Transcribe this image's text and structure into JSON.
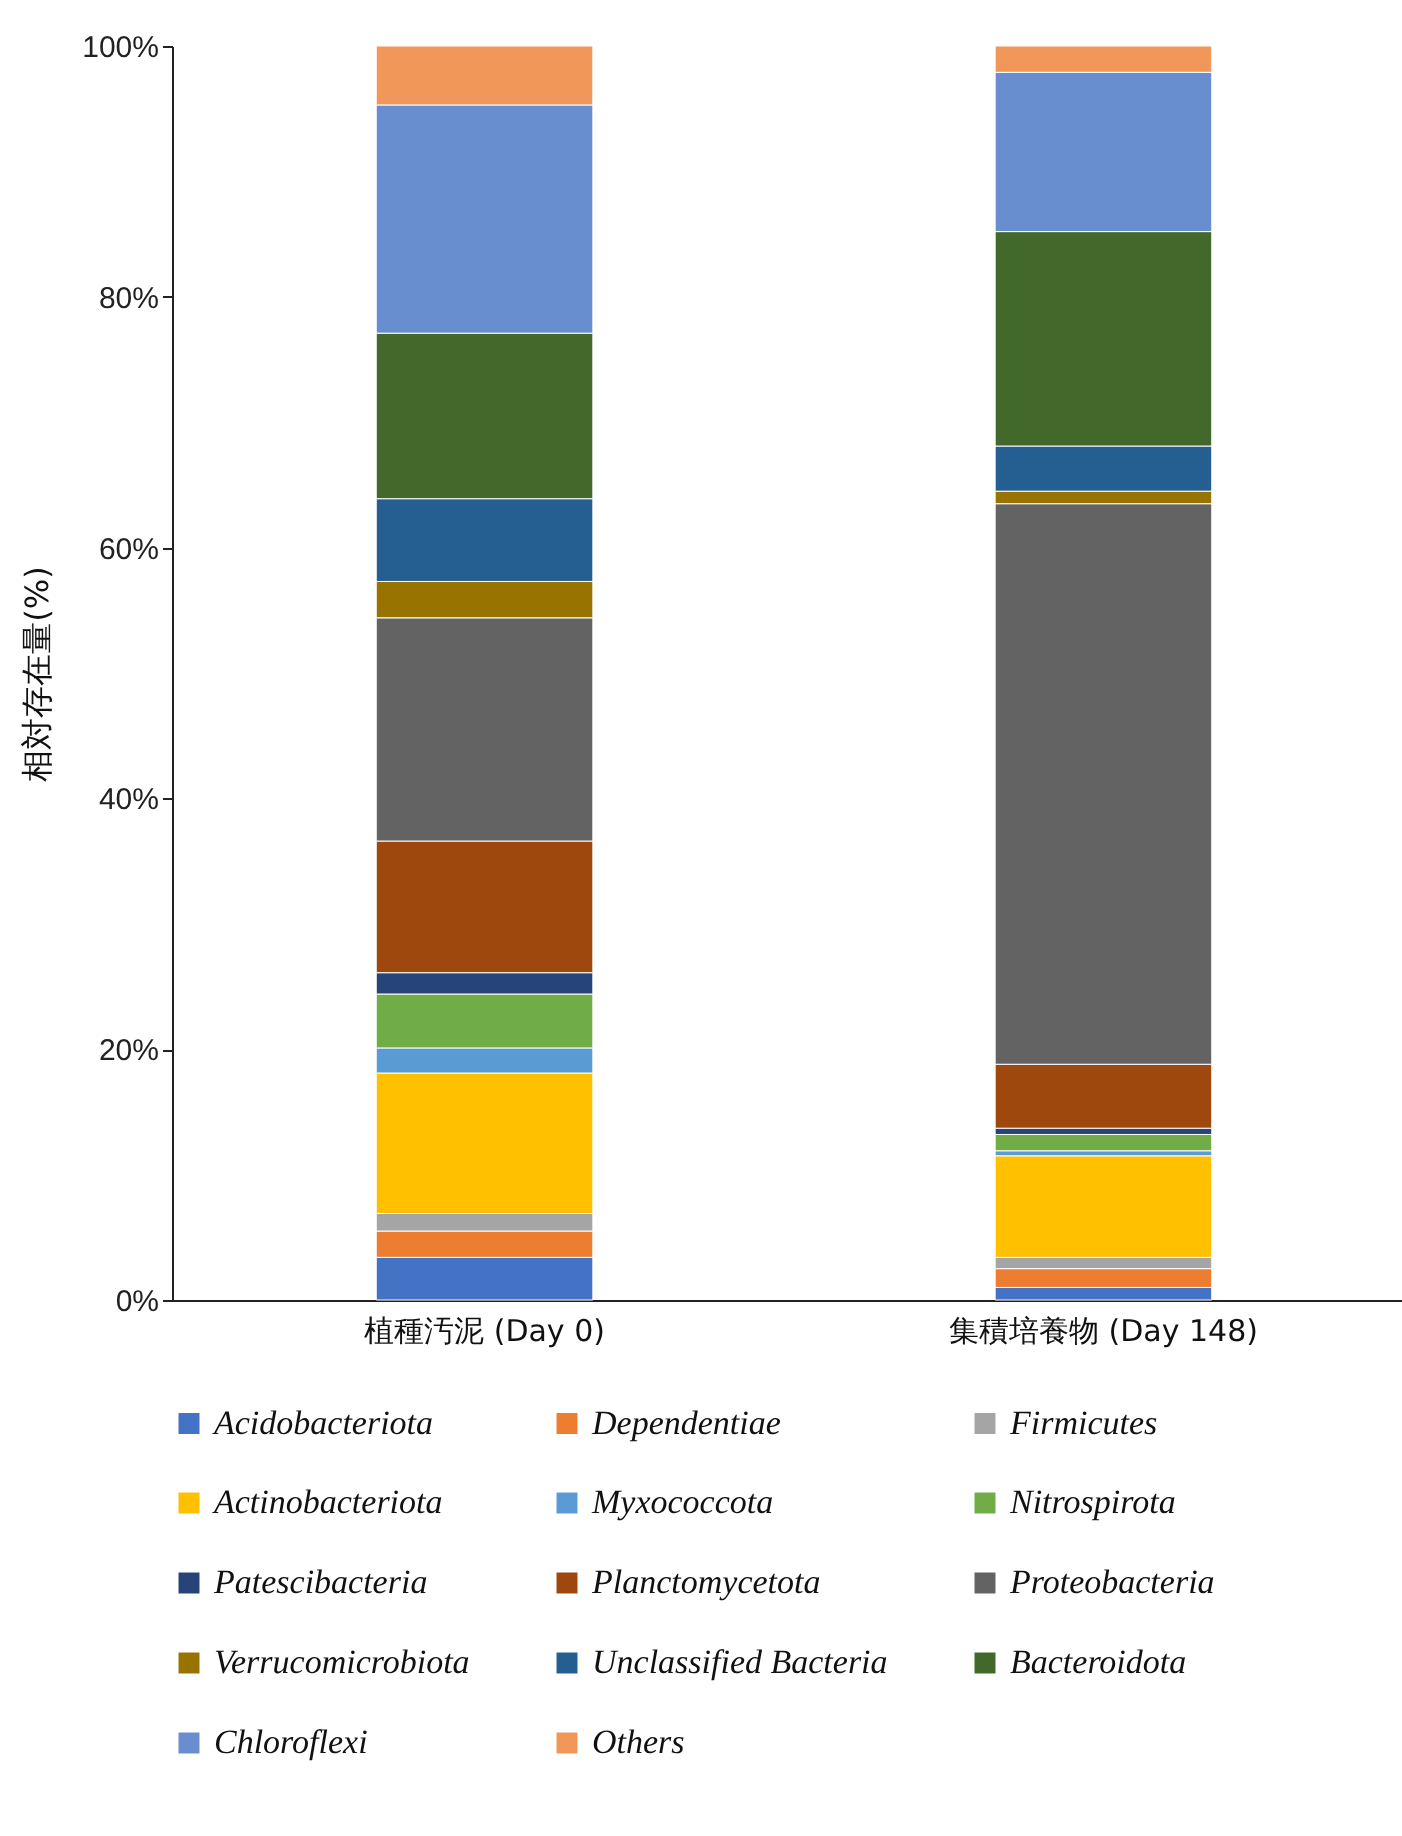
{
  "chart_data": {
    "type": "bar",
    "stacked": true,
    "ylabel": "相対存在量(%)",
    "categories": [
      "植種汚泥 (Day 0)",
      "集積培養物 (Day 148)"
    ],
    "ylim": [
      0,
      100
    ],
    "yticks": [
      {
        "value": 0,
        "label": "0%"
      },
      {
        "value": 20,
        "label": "20%"
      },
      {
        "value": 40,
        "label": "40%"
      },
      {
        "value": 60,
        "label": "60%"
      },
      {
        "value": 80,
        "label": "80%"
      },
      {
        "value": 100,
        "label": "100%"
      }
    ],
    "grid": false,
    "legend": "bottom",
    "series": [
      {
        "name": "Acidobacteriota",
        "color": "#4472c4",
        "values": [
          3.4,
          1.0
        ]
      },
      {
        "name": "Dependentiae",
        "color": "#ed7d31",
        "values": [
          2.1,
          1.5
        ]
      },
      {
        "name": "Firmicutes",
        "color": "#a5a5a5",
        "values": [
          1.4,
          0.9
        ]
      },
      {
        "name": "Actinobacteriota",
        "color": "#ffc000",
        "values": [
          11.2,
          8.1
        ]
      },
      {
        "name": "Myxococcota",
        "color": "#5b9bd5",
        "values": [
          2.0,
          0.4
        ]
      },
      {
        "name": "Nitrospirota",
        "color": "#70ad47",
        "values": [
          4.3,
          1.3
        ]
      },
      {
        "name": "Patescibacteria",
        "color": "#264478",
        "values": [
          1.7,
          0.5
        ]
      },
      {
        "name": "Planctomycetota",
        "color": "#9e480e",
        "values": [
          10.5,
          5.1
        ]
      },
      {
        "name": "Proteobacteria",
        "color": "#636363",
        "values": [
          17.8,
          44.7
        ]
      },
      {
        "name": "Verrucomicrobiota",
        "color": "#997300",
        "values": [
          2.9,
          1.0
        ]
      },
      {
        "name": "Unclassified Bacteria",
        "color": "#255e91",
        "values": [
          6.6,
          3.6
        ]
      },
      {
        "name": "Bacteroidota",
        "color": "#43682b",
        "values": [
          13.2,
          17.1
        ]
      },
      {
        "name": "Chloroflexi",
        "color": "#698ed0",
        "values": [
          18.2,
          12.7
        ]
      },
      {
        "name": "Others",
        "color": "#f1975a",
        "values": [
          4.7,
          2.1
        ]
      }
    ]
  }
}
